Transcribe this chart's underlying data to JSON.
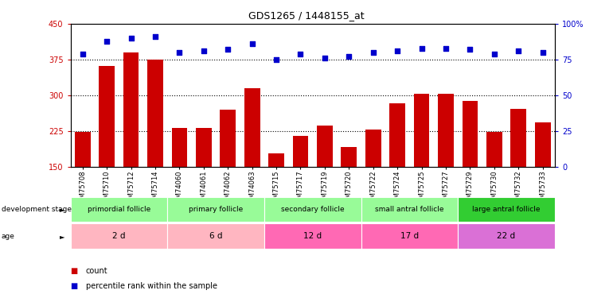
{
  "title": "GDS1265 / 1448155_at",
  "samples": [
    "GSM75708",
    "GSM75710",
    "GSM75712",
    "GSM75714",
    "GSM74060",
    "GSM74061",
    "GSM74062",
    "GSM74063",
    "GSM75715",
    "GSM75717",
    "GSM75719",
    "GSM75720",
    "GSM75722",
    "GSM75724",
    "GSM75725",
    "GSM75727",
    "GSM75729",
    "GSM75730",
    "GSM75732",
    "GSM75733"
  ],
  "counts": [
    224,
    362,
    390,
    375,
    232,
    231,
    270,
    315,
    178,
    215,
    236,
    192,
    228,
    284,
    303,
    303,
    288,
    224,
    272,
    243
  ],
  "percentiles": [
    79,
    88,
    90,
    91,
    80,
    81,
    82,
    86,
    75,
    79,
    76,
    77,
    80,
    81,
    83,
    83,
    82,
    79,
    81,
    80
  ],
  "ylim_left": [
    150,
    450
  ],
  "ylim_right": [
    0,
    100
  ],
  "yticks_left": [
    150,
    225,
    300,
    375,
    450
  ],
  "yticks_right": [
    0,
    25,
    50,
    75,
    100
  ],
  "bar_color": "#cc0000",
  "dot_color": "#0000cc",
  "groups": [
    {
      "label": "primordial follicle",
      "age": "2 d",
      "start": 0,
      "end": 4,
      "bg_stage": "#98fb98",
      "bg_age": "#ffb6c1"
    },
    {
      "label": "primary follicle",
      "age": "6 d",
      "start": 4,
      "end": 8,
      "bg_stage": "#98fb98",
      "bg_age": "#ffb6c1"
    },
    {
      "label": "secondary follicle",
      "age": "12 d",
      "start": 8,
      "end": 12,
      "bg_stage": "#98fb98",
      "bg_age": "#ff69b4"
    },
    {
      "label": "small antral follicle",
      "age": "17 d",
      "start": 12,
      "end": 16,
      "bg_stage": "#98fb98",
      "bg_age": "#ff69b4"
    },
    {
      "label": "large antral follicle",
      "age": "22 d",
      "start": 16,
      "end": 20,
      "bg_stage": "#32cd32",
      "bg_age": "#da70d6"
    }
  ],
  "legend_items": [
    {
      "color": "#cc0000",
      "label": "count"
    },
    {
      "color": "#0000cc",
      "label": "percentile rank within the sample"
    }
  ]
}
